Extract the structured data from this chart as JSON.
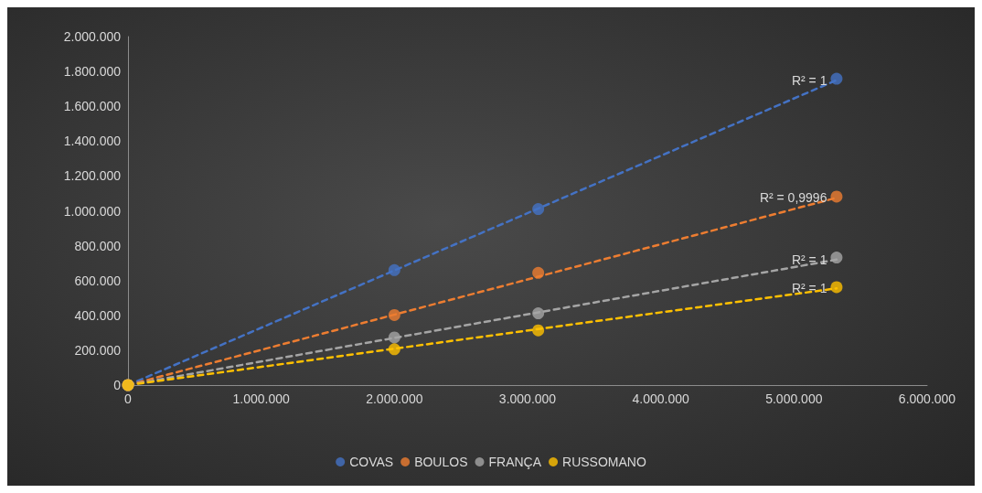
{
  "chart_data": {
    "type": "scatter",
    "marker": "circle",
    "legend": "bottom",
    "grid": false,
    "xlim": [
      0,
      6000000
    ],
    "xticks": [
      {
        "value": 0,
        "label": "0"
      },
      {
        "value": 1000000,
        "label": "1.000.000"
      },
      {
        "value": 2000000,
        "label": "2.000.000"
      },
      {
        "value": 3000000,
        "label": "3.000.000"
      },
      {
        "value": 4000000,
        "label": "4.000.000"
      },
      {
        "value": 5000000,
        "label": "5.000.000"
      },
      {
        "value": 6000000,
        "label": "6.000.000"
      }
    ],
    "ylim": [
      0,
      2000000
    ],
    "yticks": [
      {
        "value": 0,
        "label": "0"
      },
      {
        "value": 200000,
        "label": "200.000"
      },
      {
        "value": 400000,
        "label": "400.000"
      },
      {
        "value": 600000,
        "label": "600.000"
      },
      {
        "value": 800000,
        "label": "800.000"
      },
      {
        "value": 1000000,
        "label": "1.000.000"
      },
      {
        "value": 1200000,
        "label": "1.200.000"
      },
      {
        "value": 1400000,
        "label": "1.400.000"
      },
      {
        "value": 1600000,
        "label": "1.600.000"
      },
      {
        "value": 1800000,
        "label": "1.800.000"
      },
      {
        "value": 2000000,
        "label": "2.000.000"
      }
    ],
    "series": [
      {
        "name": "COVAS",
        "color": "#4472c4",
        "x": [
          0,
          2000000,
          3080000,
          5320000
        ],
        "values": [
          0,
          660000,
          1010000,
          1758000
        ]
      },
      {
        "name": "BOULOS",
        "color": "#ed7d31",
        "x": [
          0,
          2000000,
          3080000,
          5320000
        ],
        "values": [
          0,
          402000,
          644000,
          1082000
        ]
      },
      {
        "name": "FRANÇA",
        "color": "#a5a5a5",
        "x": [
          0,
          2000000,
          3080000,
          5320000
        ],
        "values": [
          0,
          273000,
          412000,
          732000
        ]
      },
      {
        "name": "RUSSOMANO",
        "color": "#ffc000",
        "x": [
          0,
          2000000,
          3080000,
          5320000
        ],
        "values": [
          0,
          206000,
          314000,
          562000
        ]
      },
      {
        "type": "line",
        "marker": "none",
        "line_style": "dashed",
        "color": "#4472c4",
        "x": [
          0,
          5320000
        ],
        "values": [
          0,
          1750000
        ]
      },
      {
        "type": "line",
        "marker": "none",
        "line_style": "dashed",
        "color": "#ed7d31",
        "x": [
          0,
          5320000
        ],
        "values": [
          0,
          1075000
        ]
      },
      {
        "type": "line",
        "marker": "none",
        "line_style": "dashed",
        "color": "#a5a5a5",
        "x": [
          0,
          5320000
        ],
        "values": [
          0,
          720000
        ]
      },
      {
        "type": "line",
        "marker": "none",
        "line_style": "dashed",
        "color": "#ffc000",
        "x": [
          0,
          5320000
        ],
        "values": [
          0,
          555000
        ]
      }
    ],
    "annotations": [
      "R² = 1",
      "R² = 0,9996",
      "R² = 1",
      "R² = 1"
    ]
  }
}
